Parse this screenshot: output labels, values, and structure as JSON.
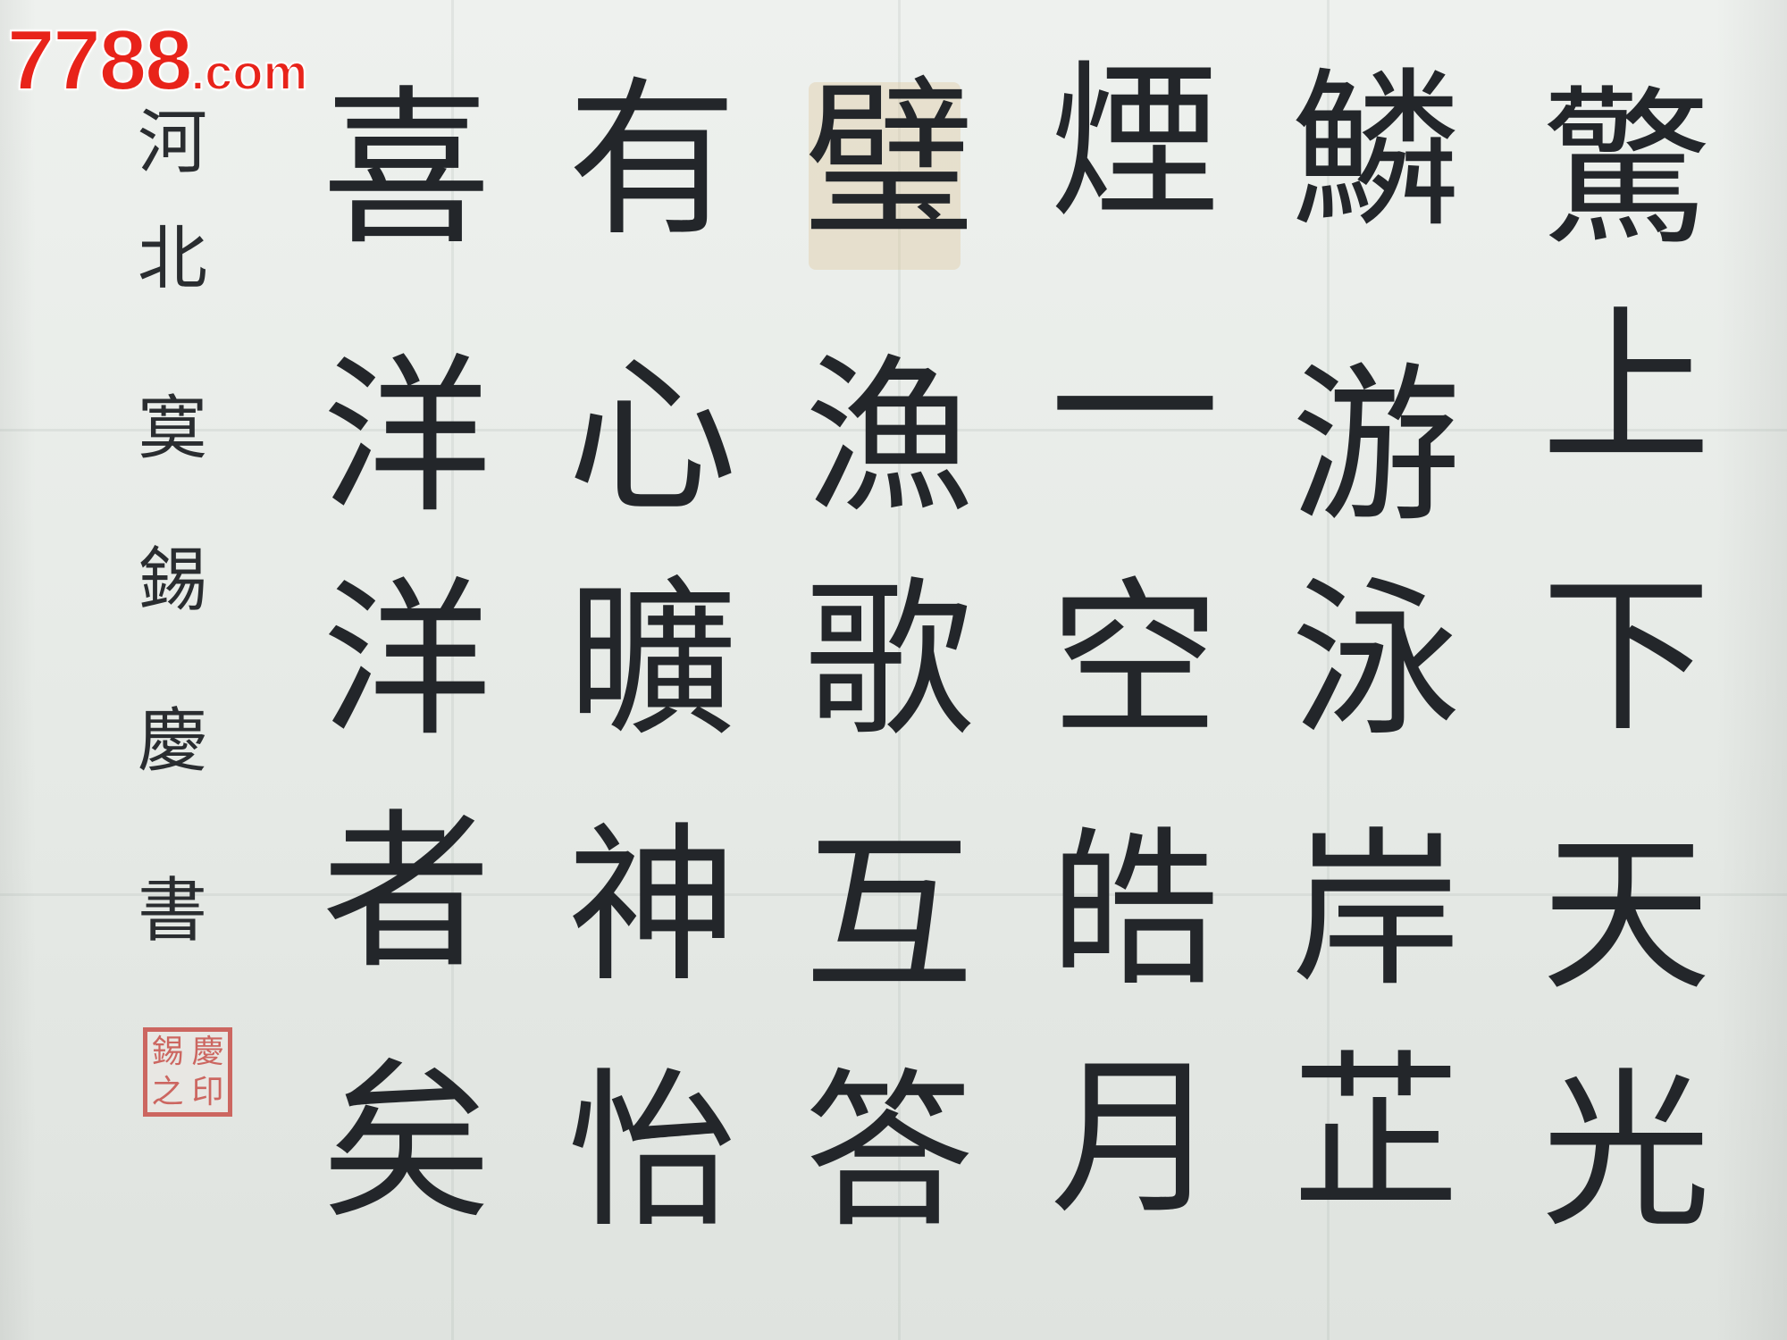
{
  "watermark": {
    "site": "7788",
    "domain": ".com"
  },
  "main_text": {
    "columns": [
      [
        "驚",
        "上",
        "下",
        "天",
        "光"
      ],
      [
        "鱗",
        "游",
        "泳",
        "岸",
        "芷"
      ],
      [
        "煙",
        "一",
        "空",
        "皓",
        "月"
      ],
      [
        "璧",
        "漁",
        "歌",
        "互",
        "答"
      ],
      [
        "有",
        "心",
        "曠",
        "神",
        "怡"
      ],
      [
        "喜",
        "洋",
        "洋",
        "者",
        "矣"
      ]
    ]
  },
  "signature": [
    "河",
    "北",
    "寞",
    "錫",
    "慶",
    "書"
  ],
  "seal": {
    "color": "#c9504a",
    "chars": [
      "錫",
      "慶",
      "之",
      "印"
    ]
  }
}
